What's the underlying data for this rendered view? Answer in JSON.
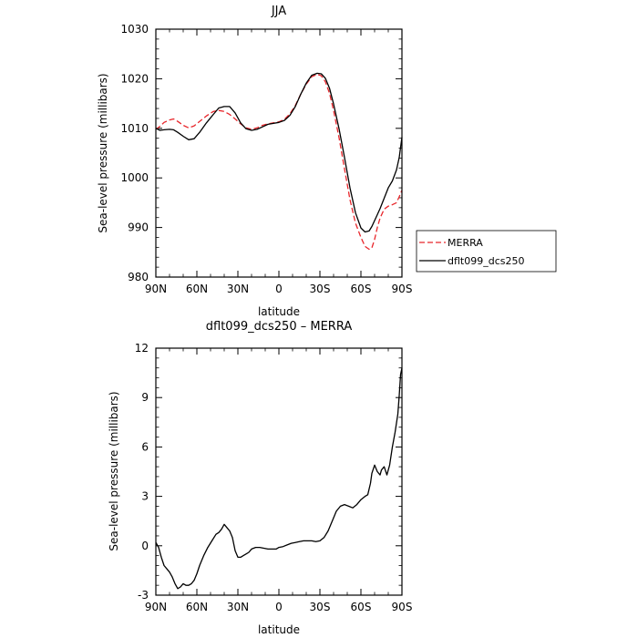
{
  "chart_data": [
    {
      "type": "line",
      "title": "JJA",
      "xlabel": "latitude",
      "ylabel": "Sea-level pressure (millibars)",
      "xlim": [
        90,
        -90
      ],
      "ylim": [
        980,
        1030
      ],
      "x_ticks": [
        90,
        60,
        30,
        0,
        -30,
        -60,
        -90
      ],
      "x_tick_labels": [
        "90N",
        "60N",
        "30N",
        "0",
        "30S",
        "60S",
        "90S"
      ],
      "y_ticks": [
        980,
        990,
        1000,
        1010,
        1020,
        1030
      ],
      "y_tick_labels": [
        "980",
        "990",
        "1000",
        "1010",
        "1020",
        "1030"
      ],
      "grid": false,
      "legend_position": "right, outside plot",
      "series": [
        {
          "name": "MERRA",
          "color": "#e8262b",
          "dash": "dashed",
          "x": [
            90,
            87,
            84,
            80,
            77,
            74,
            70,
            66,
            62,
            58,
            53,
            48,
            44,
            40,
            36,
            32,
            28,
            24,
            20,
            16,
            12,
            8,
            4,
            0,
            -4,
            -8,
            -12,
            -16,
            -20,
            -24,
            -28,
            -31,
            -34,
            -37,
            -40,
            -44,
            -48,
            -52,
            -56,
            -60,
            -63,
            -66,
            -68,
            -70,
            -72,
            -74,
            -77,
            -80,
            -83,
            -86,
            -88,
            -90
          ],
          "y": [
            1009.8,
            1010.4,
            1011.2,
            1011.7,
            1011.9,
            1011.4,
            1010.6,
            1010.1,
            1010.5,
            1011.4,
            1012.5,
            1013.4,
            1013.6,
            1013.4,
            1012.8,
            1011.9,
            1010.9,
            1010.1,
            1009.8,
            1010.1,
            1010.6,
            1010.9,
            1011.1,
            1011.3,
            1011.8,
            1012.9,
            1014.6,
            1016.9,
            1018.9,
            1020.4,
            1020.9,
            1020.6,
            1019.4,
            1017.1,
            1013.6,
            1008.1,
            1001.8,
            995.6,
            990.9,
            988.0,
            986.2,
            985.6,
            985.9,
            987.6,
            990.0,
            991.9,
            993.7,
            994.3,
            994.6,
            995.0,
            996.2,
            997.5
          ]
        },
        {
          "name": "dflt099_dcs250",
          "color": "#000000",
          "dash": "solid",
          "x": [
            90,
            87,
            84,
            80,
            77,
            74,
            70,
            66,
            62,
            58,
            53,
            48,
            44,
            40,
            36,
            32,
            28,
            24,
            20,
            16,
            12,
            8,
            4,
            0,
            -4,
            -8,
            -12,
            -16,
            -20,
            -24,
            -28,
            -31,
            -34,
            -37,
            -40,
            -44,
            -48,
            -52,
            -56,
            -60,
            -63,
            -66,
            -68,
            -70,
            -72,
            -74,
            -77,
            -80,
            -83,
            -86,
            -88,
            -90
          ],
          "y": [
            1010.0,
            1009.6,
            1009.7,
            1009.8,
            1009.7,
            1009.2,
            1008.4,
            1007.7,
            1007.9,
            1009.2,
            1011.1,
            1012.8,
            1014.1,
            1014.4,
            1014.4,
            1013.1,
            1011.1,
            1009.9,
            1009.6,
            1009.8,
            1010.3,
            1010.8,
            1011.0,
            1011.2,
            1011.6,
            1012.6,
            1014.4,
            1016.9,
            1019.1,
            1020.7,
            1021.1,
            1021.0,
            1020.1,
            1018.1,
            1014.9,
            1009.9,
            1004.1,
            998.0,
            993.0,
            989.9,
            989.1,
            989.3,
            990.2,
            991.4,
            992.6,
            993.8,
            995.9,
            998.0,
            999.4,
            1001.6,
            1004.1,
            1008.2
          ]
        }
      ]
    },
    {
      "type": "line",
      "title": "dflt099_dcs250 – MERRA",
      "xlabel": "latitude",
      "ylabel": "Sea-level pressure (millibars)",
      "xlim": [
        90,
        -90
      ],
      "ylim": [
        -3,
        12
      ],
      "x_ticks": [
        90,
        60,
        30,
        0,
        -30,
        -60,
        -90
      ],
      "x_tick_labels": [
        "90N",
        "60N",
        "30N",
        "0",
        "30S",
        "60S",
        "90S"
      ],
      "y_ticks": [
        -3,
        0,
        3,
        6,
        9,
        12
      ],
      "y_tick_labels": [
        "-3",
        "0",
        "3",
        "6",
        "9",
        "12"
      ],
      "grid": false,
      "series": [
        {
          "color": "#000000",
          "dash": "solid",
          "x": [
            90,
            88,
            86,
            84,
            82,
            80,
            78,
            76,
            74,
            72,
            70,
            68,
            66,
            64,
            62,
            60,
            58,
            55,
            52,
            49,
            46,
            44,
            42,
            40,
            38,
            36,
            34,
            32,
            30,
            28,
            26,
            24,
            22,
            20,
            17,
            14,
            11,
            8,
            5,
            2,
            0,
            -3,
            -6,
            -9,
            -12,
            -15,
            -18,
            -21,
            -24,
            -27,
            -30,
            -33,
            -36,
            -39,
            -42,
            -45,
            -48,
            -51,
            -54,
            -57,
            -60,
            -63,
            -65,
            -67,
            -68,
            -70,
            -72,
            -74,
            -75,
            -77,
            -79,
            -81,
            -83,
            -85,
            -87,
            -88,
            -89,
            -90
          ],
          "y": [
            0.2,
            -0.1,
            -0.7,
            -1.2,
            -1.4,
            -1.6,
            -1.9,
            -2.3,
            -2.6,
            -2.5,
            -2.3,
            -2.4,
            -2.4,
            -2.3,
            -2.1,
            -1.7,
            -1.2,
            -0.6,
            -0.1,
            0.3,
            0.7,
            0.8,
            1.0,
            1.3,
            1.1,
            0.9,
            0.5,
            -0.3,
            -0.7,
            -0.7,
            -0.6,
            -0.5,
            -0.4,
            -0.2,
            -0.1,
            -0.1,
            -0.15,
            -0.2,
            -0.2,
            -0.2,
            -0.1,
            -0.05,
            0.05,
            0.15,
            0.2,
            0.25,
            0.3,
            0.3,
            0.3,
            0.25,
            0.3,
            0.5,
            0.9,
            1.5,
            2.1,
            2.4,
            2.5,
            2.4,
            2.3,
            2.5,
            2.8,
            3.0,
            3.1,
            3.8,
            4.4,
            4.9,
            4.5,
            4.3,
            4.6,
            4.8,
            4.3,
            4.9,
            6.0,
            6.9,
            8.0,
            9.1,
            10.4,
            10.8
          ]
        }
      ]
    }
  ],
  "legend": {
    "entries": [
      "MERRA",
      "dflt099_dcs250"
    ]
  }
}
